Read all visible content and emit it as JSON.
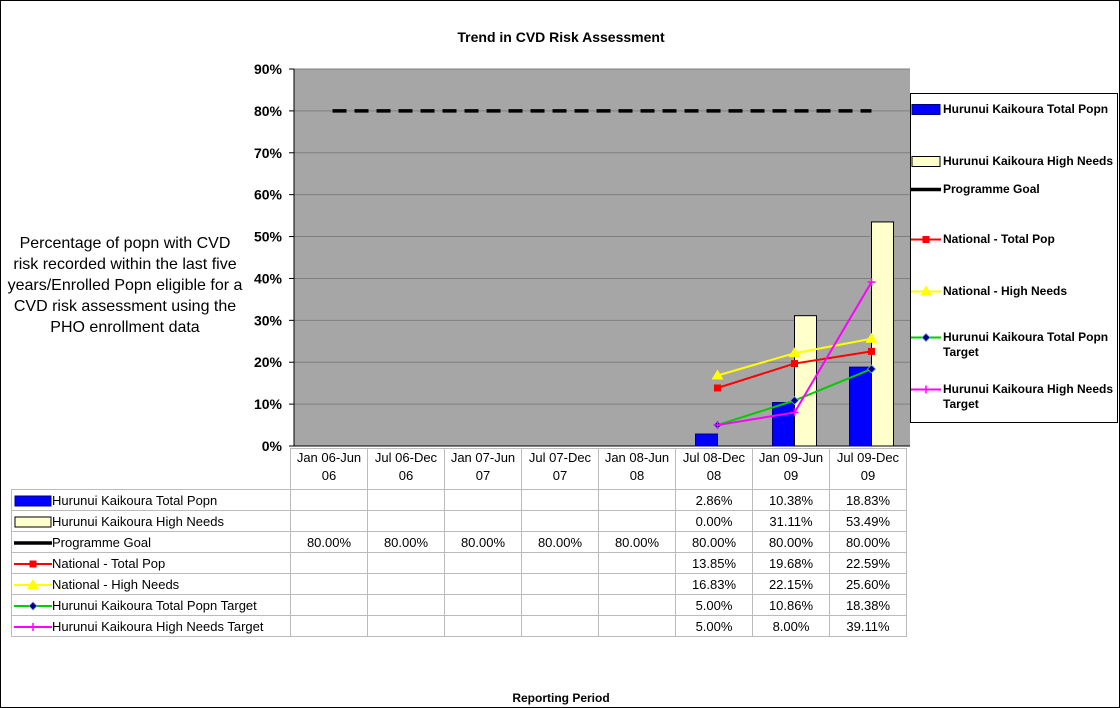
{
  "chart_data": {
    "type": "bar",
    "title": "Trend in CVD Risk Assessment",
    "y_label": "Percentage of popn with CVD risk recorded within the last five years/Enrolled Popn eligible for a CVD risk assessment using the PHO enrollment data",
    "x_label": "Reporting Period",
    "categories": [
      "Jan 06-Jun 06",
      "Jul 06-Dec 06",
      "Jan 07-Jun 07",
      "Jul 07-Dec 07",
      "Jan 08-Jun 08",
      "Jul 08-Dec 08",
      "Jan 09-Jun 09",
      "Jul 09-Dec 09"
    ],
    "ylim": [
      0,
      90
    ],
    "yticks": [
      {
        "value": 0,
        "label": "0%"
      },
      {
        "value": 10,
        "label": "10%"
      },
      {
        "value": 20,
        "label": "20%"
      },
      {
        "value": 30,
        "label": "30%"
      },
      {
        "value": 40,
        "label": "40%"
      },
      {
        "value": 50,
        "label": "50%"
      },
      {
        "value": 60,
        "label": "60%"
      },
      {
        "value": 70,
        "label": "70%"
      },
      {
        "value": 80,
        "label": "80%"
      },
      {
        "value": 90,
        "label": "90%"
      }
    ],
    "grid": true,
    "legend": "right",
    "series": [
      {
        "name": "Hurunui Kaikoura Total Popn",
        "type": "bar",
        "color": "#0000ff",
        "values": [
          null,
          null,
          null,
          null,
          null,
          2.86,
          10.38,
          18.83
        ],
        "value_labels": [
          null,
          null,
          null,
          null,
          null,
          "2.86%",
          "10.38%",
          "18.83%"
        ]
      },
      {
        "name": "Hurunui Kaikoura High Needs",
        "type": "bar",
        "color": "#ffffcc",
        "values": [
          null,
          null,
          null,
          null,
          null,
          0,
          31.11,
          53.49
        ],
        "value_labels": [
          null,
          null,
          null,
          null,
          null,
          "0.00%",
          "31.11%",
          "53.49%"
        ]
      },
      {
        "name": "Programme Goal",
        "type": "line",
        "marker": "none",
        "dashed": true,
        "color": "#000000",
        "values": [
          80,
          80,
          80,
          80,
          80,
          80,
          80,
          80
        ],
        "value_labels": [
          "80.00%",
          "80.00%",
          "80.00%",
          "80.00%",
          "80.00%",
          "80.00%",
          "80.00%",
          "80.00%"
        ]
      },
      {
        "name": "National - Total Pop",
        "type": "line",
        "marker": "square",
        "color": "#ff0000",
        "values": [
          null,
          null,
          null,
          null,
          null,
          13.85,
          19.68,
          22.59
        ],
        "value_labels": [
          null,
          null,
          null,
          null,
          null,
          "13.85%",
          "19.68%",
          "22.59%"
        ]
      },
      {
        "name": "National - High Needs",
        "type": "line",
        "marker": "triangle",
        "color": "#ffff00",
        "values": [
          null,
          null,
          null,
          null,
          null,
          16.83,
          22.15,
          25.6
        ],
        "value_labels": [
          null,
          null,
          null,
          null,
          null,
          "16.83%",
          "22.15%",
          "25.60%"
        ]
      },
      {
        "name": "Hurunui Kaikoura Total Popn Target",
        "type": "line",
        "marker": "diamond",
        "marker_color": "#000080",
        "color": "#00cc00",
        "values": [
          null,
          null,
          null,
          null,
          null,
          5,
          10.86,
          18.38
        ],
        "value_labels": [
          null,
          null,
          null,
          null,
          null,
          "5.00%",
          "10.86%",
          "18.38%"
        ]
      },
      {
        "name": "Hurunui Kaikoura High Needs Target",
        "type": "line",
        "marker": "plus",
        "color": "#ff00ff",
        "values": [
          null,
          null,
          null,
          null,
          null,
          5,
          8,
          39.11
        ],
        "value_labels": [
          null,
          null,
          null,
          null,
          null,
          "5.00%",
          "8.00%",
          "39.11%"
        ]
      }
    ]
  }
}
